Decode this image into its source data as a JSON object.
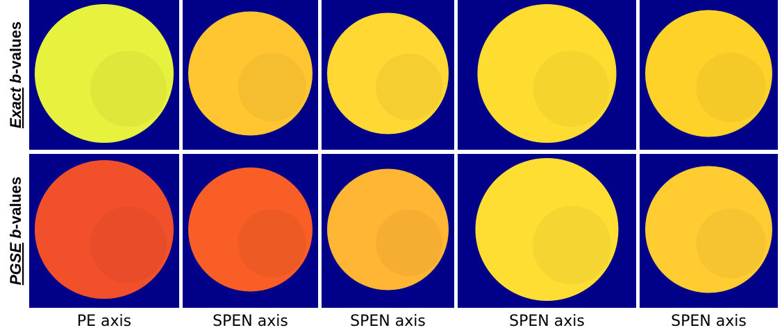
{
  "rows": [
    {
      "label": {
        "emphasis": "Exact",
        "variable": "b",
        "suffix": "-values"
      }
    },
    {
      "label": {
        "emphasis": "PGSE",
        "variable": "b",
        "suffix": "-values"
      }
    }
  ],
  "columns": [
    "PE axis",
    "SPEN axis",
    "SPEN axis",
    "SPEN axis",
    "SPEN axis"
  ]
}
